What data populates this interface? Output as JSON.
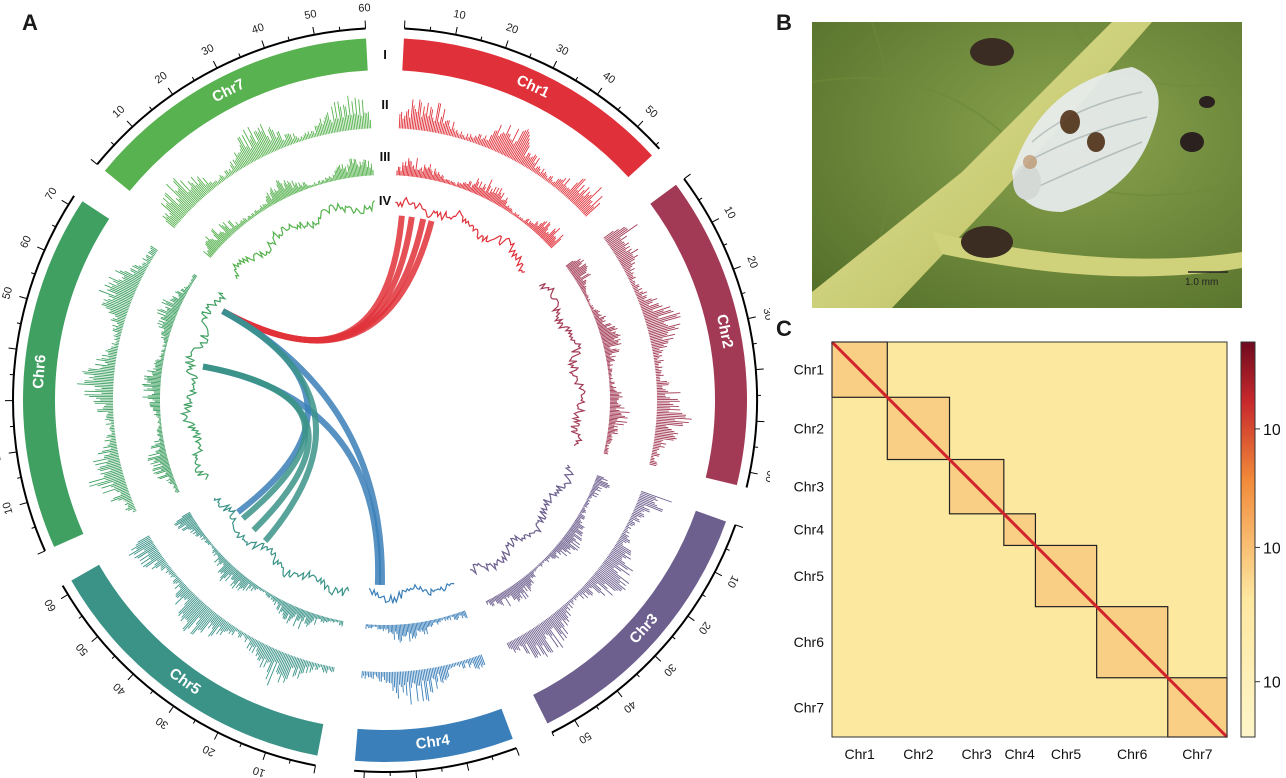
{
  "panels": {
    "a": "A",
    "b": "B",
    "c": "C"
  },
  "circos": {
    "chromosomes": [
      {
        "name": "Chr1",
        "length": 56,
        "ticks": [
          10,
          20,
          30,
          40,
          50
        ],
        "color": "#e0313a"
      },
      {
        "name": "Chr2",
        "length": 63,
        "ticks": [
          10,
          20,
          30,
          40,
          50,
          60
        ],
        "color": "#a23a55"
      },
      {
        "name": "Chr3",
        "length": 55,
        "ticks": [
          10,
          20,
          30,
          40,
          50
        ],
        "color": "#6d5f8e"
      },
      {
        "name": "Chr4",
        "length": 32,
        "ticks": [
          10,
          20,
          30
        ],
        "color": "#3a7fb9"
      },
      {
        "name": "Chr5",
        "length": 62,
        "ticks": [
          10,
          20,
          30,
          40,
          50,
          60
        ],
        "color": "#3b9388"
      },
      {
        "name": "Chr6",
        "length": 72,
        "ticks": [
          10,
          20,
          30,
          40,
          50,
          60,
          70
        ],
        "color": "#3fa062"
      },
      {
        "name": "Chr7",
        "length": 60,
        "ticks": [
          10,
          20,
          30,
          40,
          50,
          60
        ],
        "color": "#57b24f"
      }
    ],
    "track_labels": [
      "I",
      "II",
      "III",
      "IV"
    ]
  },
  "photo": {
    "scale_label": "1.0 mm"
  },
  "heatmap": {
    "labels": [
      "Chr1",
      "Chr2",
      "Chr3",
      "Chr4",
      "Chr5",
      "Chr6",
      "Chr7"
    ],
    "sizes": [
      56,
      63,
      55,
      32,
      62,
      72,
      60
    ],
    "colorbar_ticks": [
      "10²",
      "10³",
      "10⁴"
    ],
    "colors": {
      "low": "#fde8a0",
      "mid": "#f28a3a",
      "high": "#6e0b1f"
    }
  }
}
